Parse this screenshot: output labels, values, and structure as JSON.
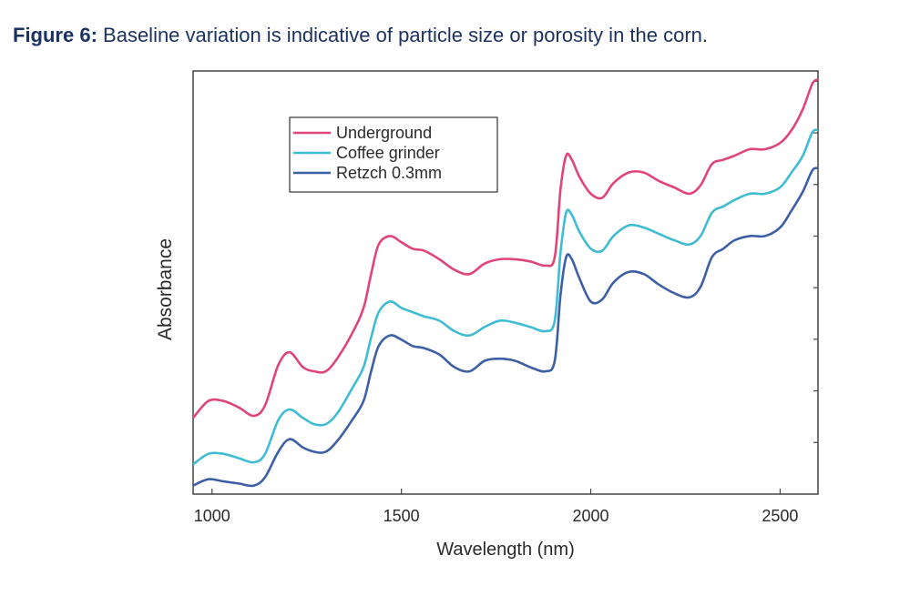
{
  "caption": {
    "prefix": "Figure 6:",
    "text": "Baseline variation is indicative of particle size or porosity in the corn."
  },
  "chart_data": {
    "type": "line",
    "title": "",
    "xlabel": "Wavelength (nm)",
    "ylabel": "Absorbance",
    "xlim": [
      950,
      2600
    ],
    "ylim": [
      0,
      1
    ],
    "x_ticks": [
      1000,
      1500,
      2000,
      2500
    ],
    "y_tick_labels": "none",
    "grid": false,
    "legend_position": "top-left",
    "series": [
      {
        "name": "Underground",
        "color": "#e0457a",
        "points": [
          [
            950,
            0.18
          ],
          [
            990,
            0.22
          ],
          [
            1030,
            0.22
          ],
          [
            1070,
            0.205
          ],
          [
            1110,
            0.185
          ],
          [
            1140,
            0.21
          ],
          [
            1175,
            0.305
          ],
          [
            1205,
            0.335
          ],
          [
            1240,
            0.3
          ],
          [
            1270,
            0.29
          ],
          [
            1300,
            0.29
          ],
          [
            1330,
            0.32
          ],
          [
            1370,
            0.38
          ],
          [
            1400,
            0.44
          ],
          [
            1420,
            0.52
          ],
          [
            1440,
            0.59
          ],
          [
            1470,
            0.61
          ],
          [
            1500,
            0.595
          ],
          [
            1530,
            0.58
          ],
          [
            1560,
            0.575
          ],
          [
            1600,
            0.555
          ],
          [
            1640,
            0.53
          ],
          [
            1680,
            0.52
          ],
          [
            1720,
            0.545
          ],
          [
            1760,
            0.555
          ],
          [
            1800,
            0.555
          ],
          [
            1840,
            0.55
          ],
          [
            1880,
            0.54
          ],
          [
            1905,
            0.56
          ],
          [
            1920,
            0.72
          ],
          [
            1935,
            0.8
          ],
          [
            1950,
            0.79
          ],
          [
            1970,
            0.75
          ],
          [
            2000,
            0.71
          ],
          [
            2030,
            0.7
          ],
          [
            2060,
            0.735
          ],
          [
            2100,
            0.76
          ],
          [
            2140,
            0.76
          ],
          [
            2180,
            0.74
          ],
          [
            2220,
            0.725
          ],
          [
            2260,
            0.71
          ],
          [
            2290,
            0.73
          ],
          [
            2320,
            0.78
          ],
          [
            2350,
            0.79
          ],
          [
            2380,
            0.8
          ],
          [
            2420,
            0.815
          ],
          [
            2460,
            0.815
          ],
          [
            2500,
            0.83
          ],
          [
            2530,
            0.86
          ],
          [
            2560,
            0.91
          ],
          [
            2585,
            0.97
          ],
          [
            2600,
            0.98
          ]
        ]
      },
      {
        "name": "Coffee grinder",
        "color": "#3fbcd4",
        "points": [
          [
            950,
            0.07
          ],
          [
            990,
            0.095
          ],
          [
            1030,
            0.095
          ],
          [
            1070,
            0.085
          ],
          [
            1110,
            0.075
          ],
          [
            1140,
            0.095
          ],
          [
            1175,
            0.175
          ],
          [
            1205,
            0.2
          ],
          [
            1240,
            0.18
          ],
          [
            1270,
            0.165
          ],
          [
            1300,
            0.165
          ],
          [
            1330,
            0.19
          ],
          [
            1370,
            0.25
          ],
          [
            1400,
            0.3
          ],
          [
            1420,
            0.37
          ],
          [
            1440,
            0.43
          ],
          [
            1470,
            0.455
          ],
          [
            1500,
            0.44
          ],
          [
            1530,
            0.43
          ],
          [
            1560,
            0.42
          ],
          [
            1600,
            0.41
          ],
          [
            1640,
            0.385
          ],
          [
            1680,
            0.375
          ],
          [
            1720,
            0.395
          ],
          [
            1760,
            0.41
          ],
          [
            1800,
            0.405
          ],
          [
            1840,
            0.395
          ],
          [
            1880,
            0.385
          ],
          [
            1905,
            0.41
          ],
          [
            1920,
            0.57
          ],
          [
            1935,
            0.665
          ],
          [
            1950,
            0.66
          ],
          [
            1970,
            0.62
          ],
          [
            2000,
            0.58
          ],
          [
            2030,
            0.575
          ],
          [
            2060,
            0.61
          ],
          [
            2100,
            0.635
          ],
          [
            2140,
            0.63
          ],
          [
            2180,
            0.615
          ],
          [
            2220,
            0.6
          ],
          [
            2260,
            0.59
          ],
          [
            2290,
            0.61
          ],
          [
            2320,
            0.665
          ],
          [
            2350,
            0.68
          ],
          [
            2380,
            0.695
          ],
          [
            2420,
            0.71
          ],
          [
            2460,
            0.71
          ],
          [
            2500,
            0.725
          ],
          [
            2530,
            0.76
          ],
          [
            2560,
            0.8
          ],
          [
            2585,
            0.855
          ],
          [
            2600,
            0.86
          ]
        ]
      },
      {
        "name": "Retzch 0.3mm",
        "color": "#3c5fa6",
        "points": [
          [
            950,
            0.02
          ],
          [
            990,
            0.035
          ],
          [
            1030,
            0.03
          ],
          [
            1070,
            0.025
          ],
          [
            1110,
            0.02
          ],
          [
            1140,
            0.04
          ],
          [
            1175,
            0.1
          ],
          [
            1205,
            0.13
          ],
          [
            1240,
            0.11
          ],
          [
            1270,
            0.1
          ],
          [
            1300,
            0.1
          ],
          [
            1330,
            0.125
          ],
          [
            1370,
            0.175
          ],
          [
            1400,
            0.22
          ],
          [
            1420,
            0.29
          ],
          [
            1440,
            0.35
          ],
          [
            1470,
            0.375
          ],
          [
            1500,
            0.365
          ],
          [
            1530,
            0.35
          ],
          [
            1560,
            0.345
          ],
          [
            1600,
            0.33
          ],
          [
            1640,
            0.3
          ],
          [
            1680,
            0.29
          ],
          [
            1720,
            0.315
          ],
          [
            1760,
            0.32
          ],
          [
            1800,
            0.315
          ],
          [
            1840,
            0.3
          ],
          [
            1880,
            0.29
          ],
          [
            1905,
            0.315
          ],
          [
            1920,
            0.47
          ],
          [
            1935,
            0.56
          ],
          [
            1950,
            0.555
          ],
          [
            1970,
            0.51
          ],
          [
            2000,
            0.455
          ],
          [
            2030,
            0.46
          ],
          [
            2060,
            0.5
          ],
          [
            2100,
            0.525
          ],
          [
            2140,
            0.52
          ],
          [
            2180,
            0.495
          ],
          [
            2220,
            0.475
          ],
          [
            2260,
            0.465
          ],
          [
            2290,
            0.49
          ],
          [
            2320,
            0.56
          ],
          [
            2350,
            0.58
          ],
          [
            2380,
            0.6
          ],
          [
            2420,
            0.61
          ],
          [
            2460,
            0.61
          ],
          [
            2500,
            0.63
          ],
          [
            2530,
            0.67
          ],
          [
            2560,
            0.715
          ],
          [
            2585,
            0.765
          ],
          [
            2600,
            0.77
          ]
        ]
      }
    ]
  }
}
